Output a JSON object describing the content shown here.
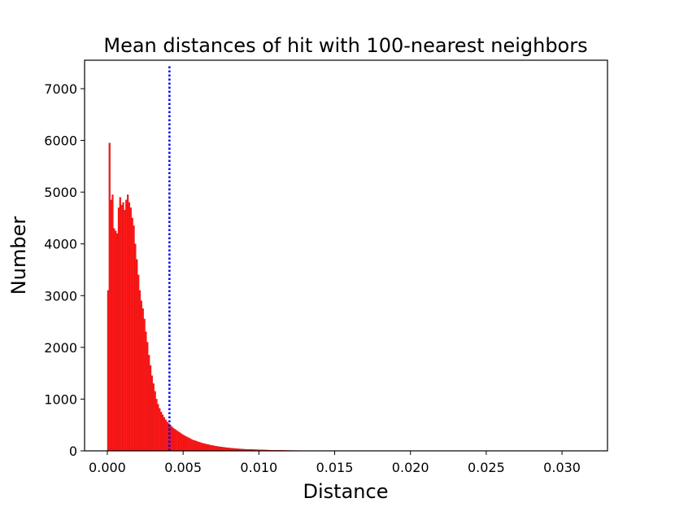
{
  "chart_data": {
    "type": "bar",
    "title": "Mean distances of hit with 100-nearest neighbors",
    "xlabel": "Distance",
    "ylabel": "Number",
    "xlim": [
      -0.0015,
      0.033
    ],
    "ylim": [
      0,
      7550
    ],
    "xticks": [
      "0.000",
      "0.005",
      "0.010",
      "0.015",
      "0.020",
      "0.025",
      "0.030"
    ],
    "yticks": [
      "0",
      "1000",
      "2000",
      "3000",
      "4000",
      "5000",
      "6000",
      "7000"
    ],
    "bar_color": "#ff1a1a",
    "bar_edge_color": "#cc0000",
    "threshold": {
      "x": 0.0041,
      "color": "#0000ff",
      "style": "dotted",
      "ymax": 7450
    },
    "bins": {
      "start": 0.0,
      "width": 0.0001,
      "counts": [
        3100,
        5950,
        4850,
        4950,
        4300,
        4250,
        4200,
        4700,
        4900,
        4750,
        4800,
        4650,
        4850,
        4950,
        4800,
        4700,
        4500,
        4350,
        4000,
        3700,
        3400,
        3100,
        2900,
        2750,
        2550,
        2300,
        2100,
        1850,
        1650,
        1450,
        1300,
        1150,
        1000,
        900,
        820,
        750,
        700,
        650,
        600,
        560,
        530,
        500,
        470,
        440,
        420,
        400,
        380,
        360,
        340,
        320,
        300,
        285,
        270,
        255,
        240,
        225,
        210,
        200,
        190,
        180,
        170,
        160,
        150,
        142,
        135,
        128,
        121,
        115,
        109,
        103,
        97,
        92,
        87,
        82,
        78,
        74,
        70,
        66,
        62,
        59,
        56,
        53,
        50,
        47,
        44,
        42,
        40,
        38,
        36,
        34,
        32,
        30,
        29,
        28,
        27,
        26,
        25,
        24,
        23,
        22,
        21,
        20,
        19,
        18,
        17,
        16,
        15,
        14,
        14,
        13,
        13,
        12,
        12,
        11,
        11,
        10,
        10,
        9,
        9,
        8,
        8,
        8,
        7,
        7,
        7,
        6,
        6,
        6,
        5,
        5,
        5,
        5,
        4,
        4,
        4,
        4,
        4,
        3,
        3,
        3,
        3,
        3,
        3,
        2,
        2,
        2,
        2,
        2,
        2,
        2,
        2,
        2,
        2,
        2,
        2,
        2,
        2,
        2,
        2,
        1,
        1,
        1,
        1,
        1,
        1,
        1,
        1,
        1,
        1,
        1,
        1,
        1,
        1,
        1,
        1,
        1,
        1,
        1,
        1,
        1,
        1,
        1,
        1,
        1,
        1,
        1,
        1,
        1,
        1,
        1,
        1,
        1,
        1,
        1,
        1,
        1,
        1,
        1,
        1,
        1,
        1,
        1,
        1,
        1,
        1,
        1,
        1,
        1,
        1,
        1,
        1,
        1,
        1,
        1,
        1,
        1,
        1,
        1,
        1,
        1,
        1,
        1,
        1,
        1,
        1,
        1,
        1,
        1,
        1,
        1,
        1,
        1,
        1,
        1,
        1,
        1,
        1,
        1,
        1,
        1,
        1,
        1,
        1,
        1,
        1,
        1,
        1,
        1,
        1,
        1,
        1,
        1,
        1,
        1,
        1,
        1,
        1,
        1,
        1,
        1,
        1,
        1,
        1,
        1,
        1,
        1,
        1,
        1,
        1,
        1,
        1,
        1,
        1,
        1,
        1,
        1,
        1,
        1,
        1,
        1,
        1,
        1,
        1,
        1,
        1,
        1,
        1,
        1,
        1,
        1,
        1,
        1,
        1,
        1,
        1,
        1,
        1,
        1,
        1,
        1,
        1,
        1,
        1,
        1,
        1,
        1,
        1,
        1,
        1,
        1,
        1,
        1,
        1,
        1,
        1,
        1,
        1,
        1
      ]
    }
  }
}
